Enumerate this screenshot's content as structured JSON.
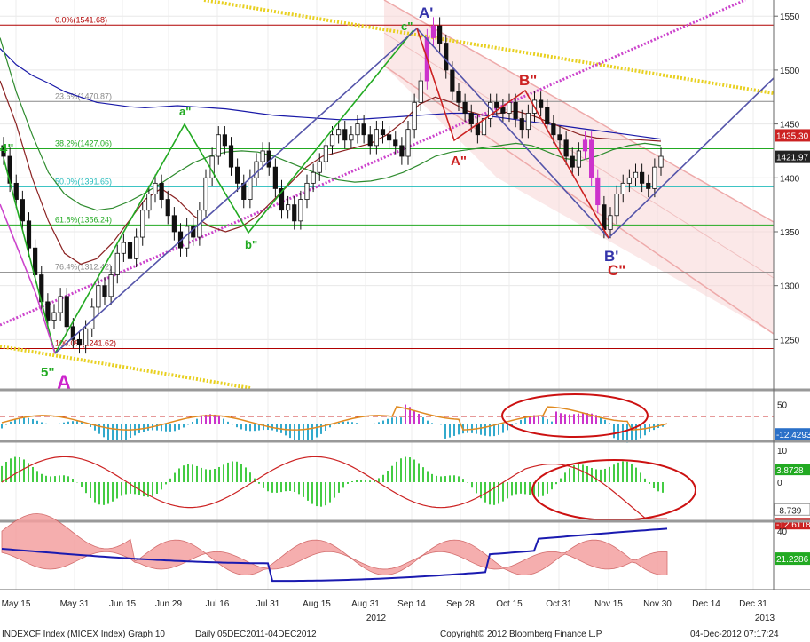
{
  "footer": {
    "left": "INDEXCF Index (MICEX Index) Graph 10",
    "middle": "Daily 05DEC2011-04DEC2012",
    "copyright": "Copyright© 2012 Bloomberg Finance L.P.",
    "right": "04-Dec-2012 07:17:24"
  },
  "colors": {
    "up": "#ffffff",
    "down": "#000000",
    "fib_red": "#b00000",
    "wave_green": "#22aa22",
    "wave_blue": "#5555aa",
    "wave_red": "#cc2222",
    "channel_magenta": "#cc44cc",
    "channel_yellow": "#e8d020",
    "ma_blue": "#1a1aa8",
    "ma_dark_red": "#8b2222",
    "ma_green": "#2e8b2e"
  },
  "chart_data": [
    {
      "type": "candlestick",
      "panel": "price",
      "title": "",
      "ylim": [
        1205,
        1565
      ],
      "y_ticks": [
        1250,
        1300,
        1350,
        1400,
        1450,
        1500,
        1550
      ],
      "x_ticks": [
        "May 15",
        "May 31",
        "Jun 15",
        "Jun 29",
        "Jul 16",
        "Jul 31",
        "Aug 15",
        "Aug 31",
        "Sep 14",
        "Sep 28",
        "Oct 15",
        "Oct 31",
        "Nov 15",
        "Nov 30",
        "Dec 14",
        "Dec 31"
      ],
      "x_year_labels": [
        "2012",
        "2013"
      ],
      "price_labels": [
        "1435.30",
        "1421.97"
      ],
      "fib_levels": [
        {
          "label": "0.0%(1541.68)",
          "value": 1541.68
        },
        {
          "label": "23.6%(1470.87)",
          "value": 1470.87
        },
        {
          "label": "38.2%(1427.06)",
          "value": 1427.06
        },
        {
          "label": "50.0%(1391.65)",
          "value": 1391.65
        },
        {
          "label": "61.8%(1356.24)",
          "value": 1356.24
        },
        {
          "label": "76.4%(1312.42)",
          "value": 1312.42
        },
        {
          "label": "100.0%(1241.62)",
          "value": 1241.62
        }
      ],
      "wave_labels": [
        "4\"",
        "5\"",
        "A",
        "a\"",
        "b\"",
        "c\"",
        "A'",
        "A\"",
        "B\"",
        "B'",
        "C\""
      ],
      "close_series": [
        1420,
        1395,
        1380,
        1360,
        1335,
        1310,
        1285,
        1268,
        1275,
        1290,
        1262,
        1250,
        1245,
        1260,
        1280,
        1300,
        1290,
        1310,
        1330,
        1340,
        1325,
        1345,
        1370,
        1385,
        1395,
        1380,
        1365,
        1350,
        1335,
        1355,
        1345,
        1370,
        1400,
        1420,
        1440,
        1430,
        1410,
        1395,
        1380,
        1400,
        1415,
        1425,
        1410,
        1390,
        1370,
        1375,
        1360,
        1380,
        1395,
        1405,
        1415,
        1430,
        1440,
        1445,
        1435,
        1440,
        1450,
        1440,
        1430,
        1445,
        1440,
        1435,
        1430,
        1420,
        1445,
        1470,
        1490,
        1530,
        1541,
        1525,
        1500,
        1480,
        1470,
        1460,
        1450,
        1440,
        1455,
        1470,
        1465,
        1460,
        1470,
        1455,
        1445,
        1460,
        1472,
        1465,
        1450,
        1440,
        1435,
        1420,
        1410,
        1425,
        1435,
        1400,
        1375,
        1352,
        1365,
        1385,
        1395,
        1400,
        1405,
        1395,
        1390,
        1410,
        1420
      ],
      "series": [
        {
          "name": "",
          "values": [
            1520,
            1505,
            1495,
            1488,
            1480,
            1475,
            1470,
            1468,
            1466,
            1465,
            1466,
            1467,
            1466,
            1465,
            1464,
            1462,
            1460,
            1458,
            1457,
            1456,
            1455,
            1454,
            1454,
            1455,
            1456,
            1457,
            1458,
            1459,
            1460,
            1460,
            1458,
            1456,
            1454,
            1452,
            1450,
            1448,
            1446,
            1444,
            1442,
            1440,
            1438,
            1436
          ]
        },
        {
          "name": "",
          "values": [
            1490,
            1450,
            1400,
            1360,
            1330,
            1320,
            1325,
            1340,
            1360,
            1380,
            1390,
            1380,
            1365,
            1355,
            1350,
            1355,
            1365,
            1380,
            1395,
            1410,
            1420,
            1424,
            1428,
            1432,
            1440,
            1452,
            1468,
            1475,
            1470,
            1462,
            1458,
            1460,
            1462,
            1458,
            1452,
            1446,
            1440,
            1437,
            1436,
            1436,
            1435,
            1434
          ]
        },
        {
          "name": "",
          "values": [
            1530,
            1480,
            1440,
            1405,
            1385,
            1375,
            1370,
            1372,
            1378,
            1386,
            1395,
            1405,
            1414,
            1420,
            1424,
            1425,
            1424,
            1420,
            1414,
            1408,
            1402,
            1398,
            1396,
            1397,
            1400,
            1405,
            1412,
            1420,
            1424,
            1426,
            1428,
            1430,
            1432,
            1430,
            1424,
            1418,
            1416,
            1420,
            1426,
            1430,
            1432,
            1430
          ]
        }
      ]
    },
    {
      "type": "bar",
      "panel": "indicator-1",
      "ylim": [
        -25,
        75
      ],
      "y_ticks": [
        50
      ],
      "last_label": "-12.4293",
      "reference_line": 25
    },
    {
      "type": "bar",
      "panel": "indicator-2",
      "ylim": [
        -12,
        12
      ],
      "y_ticks": [
        10,
        0
      ],
      "last_labels": [
        "3.8728",
        "-8.739",
        "-12.6118"
      ]
    },
    {
      "type": "area",
      "panel": "indicator-3",
      "ylim": [
        0,
        45
      ],
      "y_ticks": [
        40
      ],
      "last_label": "21.2286"
    }
  ]
}
